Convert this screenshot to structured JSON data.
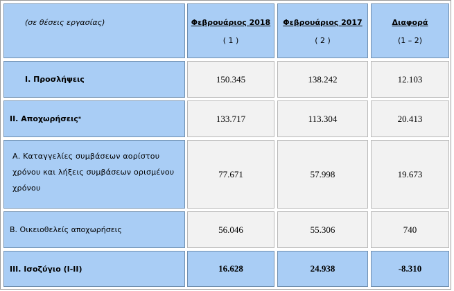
{
  "header": {
    "corner_note": "(σε θέσεις εργασίας)",
    "col1_title": "Φεβρουάριος 2018",
    "col1_sub": "( 1 )",
    "col2_title": "Φεβρουάριος 2017",
    "col2_sub": "( 2 )",
    "col3_title": "Διαφορά",
    "col3_sub": "(1 – 2)"
  },
  "rows": [
    {
      "label": "Ι. Προσλήψεις",
      "v1": "150.345",
      "v2": "138.242",
      "v3": "12.103"
    },
    {
      "label": "ΙΙ. Αποχωρήσεις",
      "label_sup": "*",
      "v1": "133.717",
      "v2": "113.304",
      "v3": "20.413"
    },
    {
      "label": "Α. Καταγγελίες συμβάσεων αορίστου χρόνου και λήξεις συμβάσεων ορισμένου χρόνου",
      "v1": "77.671",
      "v2": "57.998",
      "v3": "19.673"
    },
    {
      "label": "Β. Οικειοθελείς αποχωρήσεις",
      "v1": "56.046",
      "v2": "55.306",
      "v3": "740"
    },
    {
      "label": "ΙΙΙ. Ισοζύγιο (Ι-ΙΙ)",
      "v1": "16.628",
      "v2": "24.938",
      "v3": "-8.310"
    }
  ]
}
